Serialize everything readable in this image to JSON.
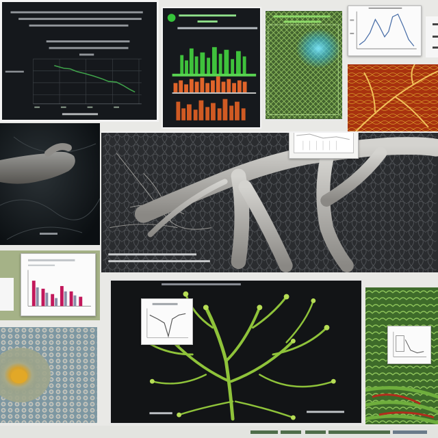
{
  "collage": {
    "description_panels": [
      "dark-chart-panel",
      "green-bar-chart-panel",
      "network-grid-panel",
      "line-graph-card",
      "red-leaf-panel",
      "dark-branch-panel",
      "branching-tissue-panel",
      "bar-chart-card",
      "cell-cluster-panel",
      "green-branching-plant-panel",
      "green-fibers-panel"
    ],
    "colors": {
      "page_background": "#e9e9e6",
      "dark_panel": "#15181c",
      "chart_green": "#3fc23c",
      "chart_orange": "#e0642a",
      "leaf_red": "#9e2b12",
      "plant_green": "#8fc33a",
      "card_background": "#fbfbfb"
    }
  }
}
